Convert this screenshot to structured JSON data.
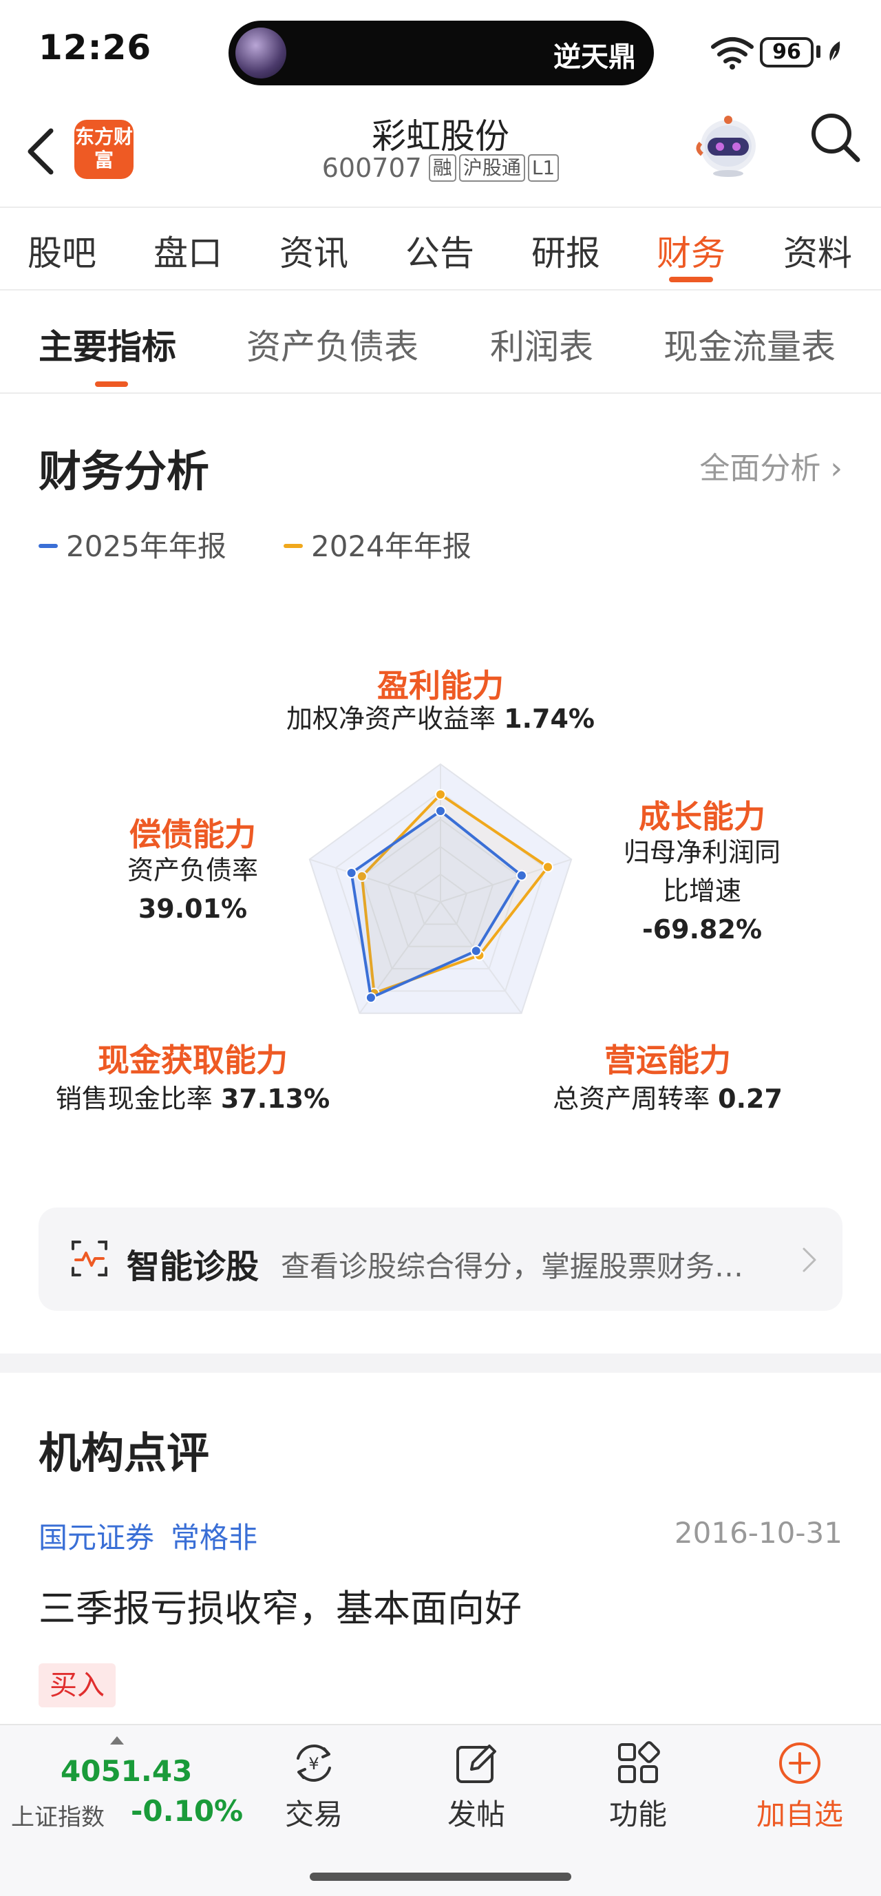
{
  "status_bar": {
    "time": "12:26",
    "island_text": "逆天鼎",
    "battery": "96"
  },
  "header": {
    "logo_text": "东方财富",
    "stock_name": "彩虹股份",
    "stock_code": "600707",
    "tags": [
      "融",
      "沪股通",
      "L1"
    ]
  },
  "main_tabs": [
    "股吧",
    "盘口",
    "资讯",
    "公告",
    "研报",
    "财务",
    "资料"
  ],
  "main_tab_active": "财务",
  "sub_tabs": [
    "主要指标",
    "资产负债表",
    "利润表",
    "现金流量表"
  ],
  "sub_tab_active": "主要指标",
  "finance": {
    "title": "财务分析",
    "more_label": "全面分析",
    "legend": [
      {
        "label": "2025年年报",
        "color": "#3a6fd6"
      },
      {
        "label": "2024年年报",
        "color": "#f0a81c"
      }
    ],
    "axes": [
      {
        "title": "盈利能力",
        "metric": "加权净资产收益率",
        "value": "1.74%"
      },
      {
        "title": "成长能力",
        "metric": "归母净利润同比增速",
        "metric_line1": "归母净利润同",
        "metric_line2": "比增速",
        "value": "-69.82%"
      },
      {
        "title": "营运能力",
        "metric": "总资产周转率",
        "value": "0.27"
      },
      {
        "title": "现金获取能力",
        "metric": "销售现金比率",
        "value": "37.13%"
      },
      {
        "title": "偿债能力",
        "metric": "资产负债率",
        "value": "39.01%"
      }
    ]
  },
  "chart_data": {
    "type": "radar",
    "categories": [
      "盈利能力",
      "成长能力",
      "营运能力",
      "现金获取能力",
      "偿债能力"
    ],
    "scale": [
      0,
      5
    ],
    "series": [
      {
        "name": "2025年年报",
        "color": "#3a6fd6",
        "values": [
          3.3,
          3.1,
          2.2,
          4.3,
          3.4
        ]
      },
      {
        "name": "2024年年报",
        "color": "#f0a81c",
        "values": [
          3.9,
          4.1,
          2.4,
          4.1,
          3.0
        ]
      }
    ]
  },
  "diagnose": {
    "title": "智能诊股",
    "description": "查看诊股综合得分，掌握股票财务…"
  },
  "institution": {
    "title": "机构点评",
    "broker": "国元证券",
    "analyst": "常格非",
    "date": "2016-10-31",
    "headline": "三季报亏损收窄，基本面向好",
    "rating": "买入"
  },
  "bottom_bar": {
    "index_value": "4051.43",
    "index_name": "上证指数",
    "index_change": "-0.10%",
    "items": [
      {
        "label": "交易",
        "icon": "trade-icon"
      },
      {
        "label": "发帖",
        "icon": "post-icon"
      },
      {
        "label": "功能",
        "icon": "function-icon"
      },
      {
        "label": "加自选",
        "icon": "add-watchlist-icon"
      }
    ]
  }
}
